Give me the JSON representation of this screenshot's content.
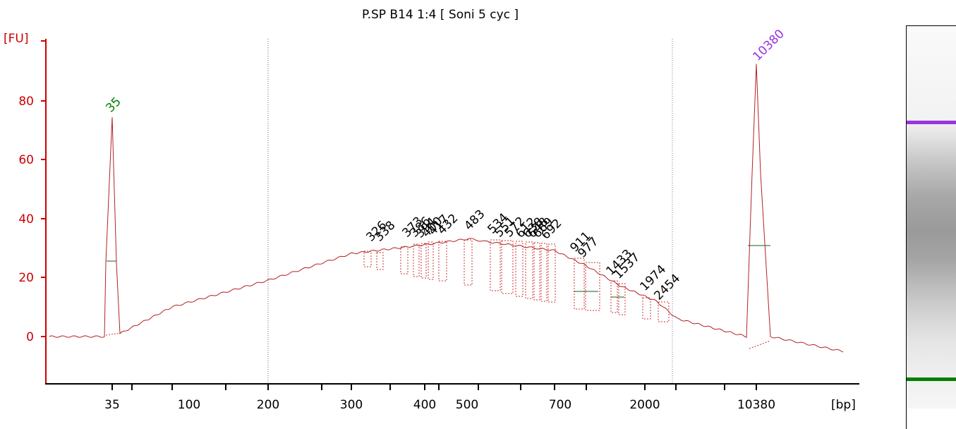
{
  "chart_data": {
    "type": "line",
    "title": "P.SP B14 1:4  [ Soni 5 cyc ]",
    "y_unit_label": "[FU]",
    "x_unit_label": "[bp]",
    "ylim": [
      -15,
      102
    ],
    "y_ticks": [
      "0",
      "20",
      "40",
      "60",
      "80"
    ],
    "x_tick_labels": [
      "35",
      "100",
      "200",
      "300",
      "400",
      "500",
      "700",
      "2000",
      "10380"
    ],
    "dotted_vertical_markers": [
      "200",
      "2454"
    ],
    "markers": [
      {
        "label": "35",
        "value": 74,
        "color": "#008000"
      },
      {
        "label": "10380",
        "value": 92,
        "color": "#9932e0"
      }
    ],
    "peak_labels": [
      "326",
      "338",
      "373",
      "386",
      "394",
      "400",
      "417",
      "432",
      "483",
      "534",
      "551",
      "572",
      "612",
      "638",
      "648",
      "669",
      "692",
      "911",
      "977",
      "1433",
      "1537",
      "1974",
      "2454"
    ],
    "trace": {
      "color": "#b22222",
      "samples": [
        [
          35,
          0
        ],
        [
          35,
          25
        ],
        [
          35,
          74
        ],
        [
          35,
          25
        ],
        [
          35,
          1
        ],
        [
          100,
          10
        ],
        [
          200,
          19
        ],
        [
          300,
          28
        ],
        [
          400,
          31
        ],
        [
          483,
          33
        ],
        [
          534,
          32
        ],
        [
          700,
          29
        ],
        [
          911,
          24
        ],
        [
          1433,
          17
        ],
        [
          1974,
          12
        ],
        [
          2454,
          6
        ],
        [
          10380,
          0
        ],
        [
          10380,
          55
        ],
        [
          10380,
          92
        ],
        [
          10380,
          55
        ],
        [
          10380,
          0
        ],
        [
          10380,
          -5
        ]
      ]
    },
    "grid": false,
    "legend": "none"
  },
  "gel": {
    "upper_marker_color": "#9932e0",
    "lower_marker_color": "#008000"
  }
}
